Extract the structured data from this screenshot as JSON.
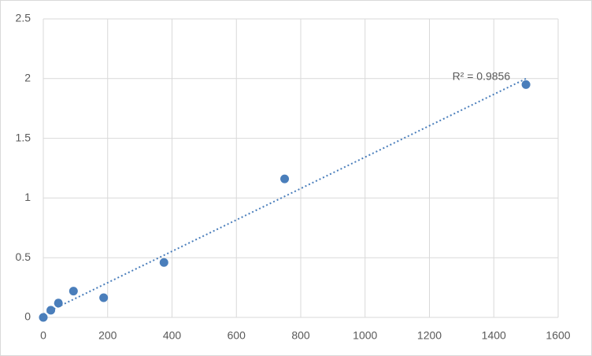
{
  "chart_data": {
    "type": "scatter",
    "x": [
      0,
      23.4,
      46.9,
      93.75,
      187.5,
      375,
      750,
      1500
    ],
    "series": [
      {
        "color": "#4a7ebb",
        "values": [
          0,
          0.06,
          0.12,
          0.22,
          0.165,
          0.46,
          1.16,
          1.95
        ]
      }
    ],
    "trendline": {
      "type": "linear",
      "color": "#4a7ebb",
      "label": "R² = 0.9856"
    },
    "xlim": [
      0,
      1600
    ],
    "xticks": [
      0,
      200,
      400,
      600,
      800,
      1000,
      1200,
      1400,
      1600
    ],
    "ylim": [
      0,
      2.5
    ],
    "yticks": [
      0,
      0.5,
      1,
      1.5,
      2,
      2.5
    ],
    "grid": true
  }
}
